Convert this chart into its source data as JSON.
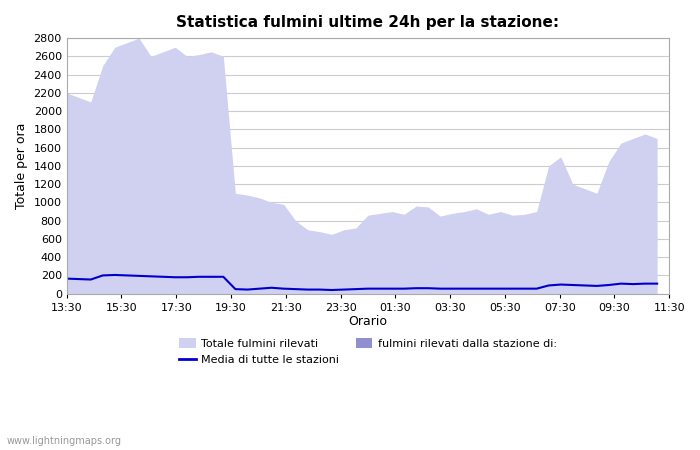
{
  "title": "Statistica fulmini ultime 24h per la stazione:",
  "xlabel": "Orario",
  "ylabel": "Totale per ora",
  "xlim": [
    0,
    25
  ],
  "ylim": [
    0,
    2800
  ],
  "yticks": [
    0,
    200,
    400,
    600,
    800,
    1000,
    1200,
    1400,
    1600,
    1800,
    2000,
    2200,
    2400,
    2600,
    2800
  ],
  "xtick_labels": [
    "13:30",
    "15:30",
    "17:30",
    "19:30",
    "21:30",
    "23:30",
    "01:30",
    "03:30",
    "05:30",
    "07:30",
    "09:30",
    "11:30"
  ],
  "background_color": "#ffffff",
  "plot_background": "#ffffff",
  "grid_color": "#cccccc",
  "watermark": "www.lightningmaps.org",
  "fill_total_color": "#d0d0f0",
  "fill_station_color": "#9090d0",
  "line_avg_color": "#0000cc",
  "x_total": [
    0,
    0.5,
    1,
    1.5,
    2,
    2.5,
    3,
    3.5,
    4,
    4.5,
    5,
    5.5,
    6,
    6.5,
    7,
    7.5,
    8,
    8.5,
    9,
    9.5,
    10,
    10.5,
    11,
    11.5,
    12,
    12.5,
    13,
    13.5,
    14,
    14.5,
    15,
    15.5,
    16,
    16.5,
    17,
    17.5,
    18,
    18.5,
    19,
    19.5,
    20,
    20.5,
    21,
    21.5,
    22,
    22.5,
    23,
    23.5,
    24,
    24.5
  ],
  "y_total": [
    2200,
    2150,
    2100,
    2500,
    2700,
    2750,
    2800,
    2600,
    2650,
    2700,
    2600,
    2620,
    2650,
    2600,
    1100,
    1080,
    1050,
    1000,
    980,
    800,
    700,
    680,
    650,
    700,
    720,
    860,
    880,
    900,
    870,
    960,
    950,
    850,
    880,
    900,
    930,
    870,
    900,
    860,
    870,
    900,
    1400,
    1500,
    1200,
    1150,
    1100,
    1450,
    1650,
    1700,
    1750,
    1700
  ],
  "y_station": [
    0,
    0,
    0,
    0,
    0,
    0,
    0,
    0,
    0,
    0,
    0,
    0,
    0,
    0,
    0,
    0,
    0,
    0,
    0,
    0,
    0,
    0,
    0,
    0,
    0,
    0,
    0,
    0,
    0,
    0,
    0,
    0,
    0,
    0,
    0,
    0,
    0,
    0,
    0,
    0,
    0,
    0,
    0,
    0,
    0,
    0,
    0,
    0,
    0,
    0
  ],
  "y_avg": [
    165,
    160,
    155,
    200,
    205,
    200,
    195,
    190,
    185,
    180,
    180,
    185,
    185,
    185,
    50,
    45,
    55,
    65,
    55,
    50,
    45,
    45,
    40,
    45,
    50,
    55,
    55,
    55,
    55,
    60,
    60,
    55,
    55,
    55,
    55,
    55,
    55,
    55,
    55,
    55,
    90,
    100,
    95,
    90,
    85,
    95,
    110,
    105,
    110,
    110
  ]
}
